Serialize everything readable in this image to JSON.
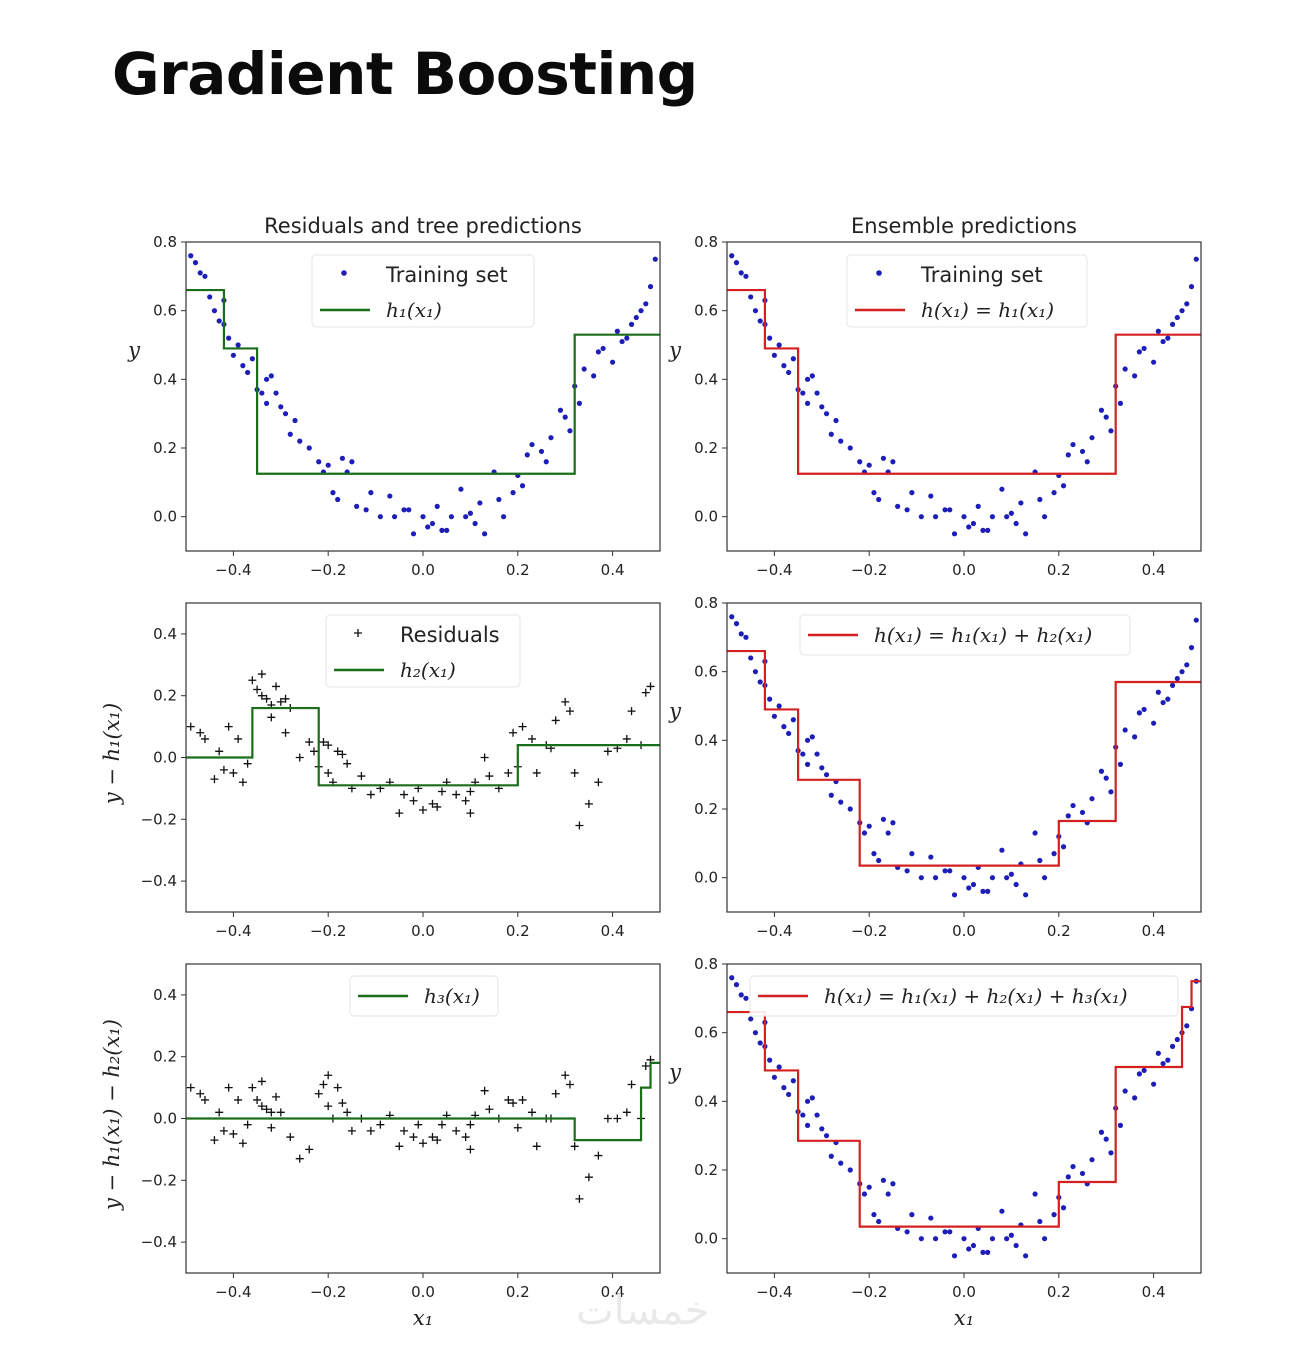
{
  "page": {
    "title": "Gradient Boosting",
    "watermark": "خمسات"
  },
  "colors": {
    "training_points": "#1d1db8",
    "residual_markers": "#111111",
    "tree_line": "#1a6e1a",
    "ensemble_line": "#d42020",
    "axes": "#333333"
  },
  "chart_data": [
    {
      "id": "p1",
      "type": "scatter",
      "title": "Residuals and tree predictions",
      "xlabel": "",
      "ylabel": "y",
      "xlim": [
        -0.5,
        0.5
      ],
      "ylim": [
        -0.1,
        0.8
      ],
      "xticks": [
        -0.4,
        -0.2,
        0.0,
        0.2,
        0.4
      ],
      "xtick_labels": [
        "−0.4",
        "−0.2",
        "0.0",
        "0.2",
        "0.4"
      ],
      "yticks": [
        0.0,
        0.2,
        0.4,
        0.6,
        0.8
      ],
      "ytick_labels": [
        "0.0",
        "0.2",
        "0.4",
        "0.6",
        "0.8"
      ],
      "points": "training",
      "point_style": "dot",
      "legend": [
        {
          "label": "Training set",
          "kind": "dot"
        },
        {
          "label": "h₁(x₁)",
          "kind": "line",
          "color": "green"
        }
      ],
      "legend_position": "upper center",
      "line": {
        "color": "green",
        "breaks": [
          -0.42,
          -0.35,
          0.32
        ],
        "levels": [
          0.66,
          0.49,
          0.125,
          0.53
        ]
      }
    },
    {
      "id": "p2",
      "type": "scatter",
      "title": "Ensemble predictions",
      "xlabel": "",
      "ylabel": "y",
      "xlim": [
        -0.5,
        0.5
      ],
      "ylim": [
        -0.1,
        0.8
      ],
      "xticks": [
        -0.4,
        -0.2,
        0.0,
        0.2,
        0.4
      ],
      "xtick_labels": [
        "−0.4",
        "−0.2",
        "0.0",
        "0.2",
        "0.4"
      ],
      "yticks": [
        0.0,
        0.2,
        0.4,
        0.6,
        0.8
      ],
      "ytick_labels": [
        "0.0",
        "0.2",
        "0.4",
        "0.6",
        "0.8"
      ],
      "points": "training",
      "point_style": "dot",
      "legend": [
        {
          "label": "Training set",
          "kind": "dot"
        },
        {
          "label": "h(x₁) = h₁(x₁)",
          "kind": "line",
          "color": "red"
        }
      ],
      "legend_position": "upper center",
      "line": {
        "color": "red",
        "breaks": [
          -0.42,
          -0.35,
          0.32
        ],
        "levels": [
          0.66,
          0.49,
          0.125,
          0.53
        ]
      }
    },
    {
      "id": "p3",
      "type": "scatter",
      "title": "",
      "xlabel": "",
      "ylabel": "y − h₁(x₁)",
      "xlim": [
        -0.5,
        0.5
      ],
      "ylim": [
        -0.5,
        0.5
      ],
      "xticks": [
        -0.4,
        -0.2,
        0.0,
        0.2,
        0.4
      ],
      "xtick_labels": [
        "−0.4",
        "−0.2",
        "0.0",
        "0.2",
        "0.4"
      ],
      "yticks": [
        -0.4,
        -0.2,
        0.0,
        0.2,
        0.4
      ],
      "ytick_labels": [
        "−0.4",
        "−0.2",
        "0.0",
        "0.2",
        "0.4"
      ],
      "points": "residuals1",
      "point_style": "plus",
      "legend": [
        {
          "label": "Residuals",
          "kind": "plus"
        },
        {
          "label": "h₂(x₁)",
          "kind": "line",
          "color": "green"
        }
      ],
      "legend_position": "upper center",
      "line": {
        "color": "green",
        "breaks": [
          -0.36,
          -0.22,
          0.2
        ],
        "levels": [
          0.0,
          0.16,
          -0.09,
          0.04
        ]
      }
    },
    {
      "id": "p4",
      "type": "scatter",
      "title": "",
      "xlabel": "",
      "ylabel": "y",
      "xlim": [
        -0.5,
        0.5
      ],
      "ylim": [
        -0.1,
        0.8
      ],
      "xticks": [
        -0.4,
        -0.2,
        0.0,
        0.2,
        0.4
      ],
      "xtick_labels": [
        "−0.4",
        "−0.2",
        "0.0",
        "0.2",
        "0.4"
      ],
      "yticks": [
        0.0,
        0.2,
        0.4,
        0.6,
        0.8
      ],
      "ytick_labels": [
        "0.0",
        "0.2",
        "0.4",
        "0.6",
        "0.8"
      ],
      "points": "training",
      "point_style": "dot",
      "legend": [
        {
          "label": "h(x₁) = h₁(x₁) + h₂(x₁)",
          "kind": "line",
          "color": "red"
        }
      ],
      "legend_position": "upper center",
      "line": {
        "color": "red",
        "breaks": [
          -0.42,
          -0.35,
          -0.22,
          0.2,
          0.32
        ],
        "levels": [
          0.66,
          0.49,
          0.285,
          0.035,
          0.165,
          0.57
        ]
      }
    },
    {
      "id": "p5",
      "type": "scatter",
      "title": "",
      "xlabel": "x₁",
      "ylabel": "y − h₁(x₁) − h₂(x₁)",
      "xlim": [
        -0.5,
        0.5
      ],
      "ylim": [
        -0.5,
        0.5
      ],
      "xticks": [
        -0.4,
        -0.2,
        0.0,
        0.2,
        0.4
      ],
      "xtick_labels": [
        "−0.4",
        "−0.2",
        "0.0",
        "0.2",
        "0.4"
      ],
      "yticks": [
        -0.4,
        -0.2,
        0.0,
        0.2,
        0.4
      ],
      "ytick_labels": [
        "−0.4",
        "−0.2",
        "0.0",
        "0.2",
        "0.4"
      ],
      "points": "residuals2",
      "point_style": "plus",
      "legend": [
        {
          "label": "h₃(x₁)",
          "kind": "line",
          "color": "green"
        }
      ],
      "legend_position": "upper center",
      "line": {
        "color": "green",
        "breaks": [
          0.32,
          0.46,
          0.48
        ],
        "levels": [
          0.0,
          -0.07,
          0.1,
          0.18
        ]
      }
    },
    {
      "id": "p6",
      "type": "scatter",
      "title": "",
      "xlabel": "x₁",
      "ylabel": "y",
      "xlim": [
        -0.5,
        0.5
      ],
      "ylim": [
        -0.1,
        0.8
      ],
      "xticks": [
        -0.4,
        -0.2,
        0.0,
        0.2,
        0.4
      ],
      "xtick_labels": [
        "−0.4",
        "−0.2",
        "0.0",
        "0.2",
        "0.4"
      ],
      "yticks": [
        0.0,
        0.2,
        0.4,
        0.6,
        0.8
      ],
      "ytick_labels": [
        "0.0",
        "0.2",
        "0.4",
        "0.6",
        "0.8"
      ],
      "points": "training",
      "point_style": "dot",
      "legend": [
        {
          "label": "h(x₁) = h₁(x₁) + h₂(x₁) + h₃(x₁)",
          "kind": "line",
          "color": "red"
        }
      ],
      "legend_position": "upper center",
      "line": {
        "color": "red",
        "breaks": [
          -0.42,
          -0.35,
          -0.22,
          0.2,
          0.32,
          0.46,
          0.48
        ],
        "levels": [
          0.66,
          0.49,
          0.285,
          0.035,
          0.165,
          0.5,
          0.675,
          0.75
        ]
      }
    }
  ],
  "datasets": {
    "training_x": [
      -0.49,
      -0.48,
      -0.47,
      -0.46,
      -0.45,
      -0.44,
      -0.43,
      -0.42,
      -0.42,
      -0.41,
      -0.4,
      -0.39,
      -0.38,
      -0.37,
      -0.36,
      -0.35,
      -0.34,
      -0.33,
      -0.33,
      -0.32,
      -0.31,
      -0.3,
      -0.29,
      -0.28,
      -0.27,
      -0.26,
      -0.24,
      -0.22,
      -0.21,
      -0.2,
      -0.19,
      -0.18,
      -0.17,
      -0.16,
      -0.15,
      -0.14,
      -0.12,
      -0.11,
      -0.09,
      -0.07,
      -0.06,
      -0.04,
      -0.03,
      -0.02,
      0.0,
      0.01,
      0.02,
      0.03,
      0.04,
      0.05,
      0.06,
      0.08,
      0.09,
      0.1,
      0.11,
      0.12,
      0.13,
      0.15,
      0.16,
      0.17,
      0.19,
      0.2,
      0.21,
      0.22,
      0.23,
      0.25,
      0.26,
      0.27,
      0.29,
      0.3,
      0.31,
      0.32,
      0.33,
      0.34,
      0.36,
      0.37,
      0.38,
      0.4,
      0.41,
      0.42,
      0.43,
      0.44,
      0.45,
      0.46,
      0.47,
      0.48,
      0.49
    ],
    "training_y": [
      0.76,
      0.74,
      0.71,
      0.7,
      0.64,
      0.6,
      0.57,
      0.56,
      0.63,
      0.52,
      0.47,
      0.5,
      0.44,
      0.42,
      0.46,
      0.37,
      0.36,
      0.4,
      0.33,
      0.41,
      0.36,
      0.32,
      0.3,
      0.24,
      0.28,
      0.22,
      0.2,
      0.16,
      0.13,
      0.15,
      0.07,
      0.05,
      0.17,
      0.13,
      0.16,
      0.03,
      0.02,
      0.07,
      0.0,
      0.06,
      0.0,
      0.02,
      0.02,
      -0.05,
      0.0,
      -0.03,
      -0.02,
      0.03,
      -0.04,
      -0.04,
      0.0,
      0.08,
      0.0,
      0.01,
      -0.02,
      0.04,
      -0.05,
      0.13,
      0.05,
      0.0,
      0.07,
      0.12,
      0.09,
      0.18,
      0.21,
      0.19,
      0.16,
      0.23,
      0.31,
      0.29,
      0.25,
      0.38,
      0.33,
      0.43,
      0.41,
      0.48,
      0.49,
      0.45,
      0.54,
      0.51,
      0.52,
      0.56,
      0.58,
      0.6,
      0.62,
      0.67,
      0.75
    ],
    "residuals1_x": [
      -0.49,
      -0.47,
      -0.46,
      -0.44,
      -0.43,
      -0.42,
      -0.41,
      -0.4,
      -0.39,
      -0.38,
      -0.37,
      -0.36,
      -0.35,
      -0.34,
      -0.34,
      -0.33,
      -0.32,
      -0.32,
      -0.31,
      -0.3,
      -0.29,
      -0.29,
      -0.28,
      -0.26,
      -0.24,
      -0.23,
      -0.22,
      -0.21,
      -0.2,
      -0.2,
      -0.19,
      -0.18,
      -0.17,
      -0.16,
      -0.15,
      -0.13,
      -0.11,
      -0.09,
      -0.07,
      -0.05,
      -0.04,
      -0.02,
      -0.01,
      0.0,
      0.02,
      0.03,
      0.04,
      0.05,
      0.07,
      0.09,
      0.1,
      0.1,
      0.11,
      0.13,
      0.14,
      0.16,
      0.18,
      0.19,
      0.2,
      0.21,
      0.23,
      0.24,
      0.26,
      0.27,
      0.28,
      0.3,
      0.31,
      0.32,
      0.33,
      0.35,
      0.37,
      0.39,
      0.41,
      0.43,
      0.44,
      0.46,
      0.47,
      0.48
    ],
    "residuals1_y": [
      0.1,
      0.08,
      0.06,
      -0.07,
      0.02,
      -0.04,
      0.1,
      -0.05,
      0.06,
      -0.08,
      -0.02,
      0.25,
      0.22,
      0.2,
      0.27,
      0.19,
      0.17,
      0.13,
      0.23,
      0.18,
      0.08,
      0.19,
      0.16,
      0.0,
      0.05,
      0.02,
      -0.03,
      0.05,
      0.04,
      -0.05,
      -0.08,
      0.02,
      0.01,
      -0.02,
      -0.1,
      -0.06,
      -0.12,
      -0.1,
      -0.08,
      -0.18,
      -0.12,
      -0.14,
      -0.1,
      -0.17,
      -0.15,
      -0.16,
      -0.11,
      -0.08,
      -0.12,
      -0.14,
      -0.18,
      -0.11,
      -0.08,
      0.0,
      -0.06,
      -0.1,
      -0.05,
      0.08,
      -0.03,
      0.1,
      0.06,
      -0.05,
      0.04,
      0.03,
      0.12,
      0.18,
      0.15,
      -0.05,
      -0.22,
      -0.15,
      -0.08,
      0.02,
      0.03,
      0.06,
      0.15,
      0.04,
      0.21,
      0.23
    ],
    "residuals2_x": [
      -0.49,
      -0.47,
      -0.46,
      -0.44,
      -0.43,
      -0.42,
      -0.41,
      -0.4,
      -0.39,
      -0.38,
      -0.37,
      -0.36,
      -0.35,
      -0.34,
      -0.34,
      -0.33,
      -0.32,
      -0.32,
      -0.31,
      -0.3,
      -0.28,
      -0.26,
      -0.24,
      -0.22,
      -0.21,
      -0.2,
      -0.2,
      -0.19,
      -0.18,
      -0.17,
      -0.16,
      -0.15,
      -0.13,
      -0.11,
      -0.09,
      -0.07,
      -0.05,
      -0.04,
      -0.02,
      -0.01,
      0.0,
      0.02,
      0.03,
      0.04,
      0.05,
      0.07,
      0.09,
      0.1,
      0.1,
      0.11,
      0.13,
      0.14,
      0.16,
      0.18,
      0.19,
      0.2,
      0.21,
      0.23,
      0.24,
      0.26,
      0.27,
      0.28,
      0.3,
      0.31,
      0.32,
      0.33,
      0.35,
      0.37,
      0.39,
      0.41,
      0.43,
      0.44,
      0.46,
      0.47,
      0.48
    ],
    "residuals2_y": [
      0.1,
      0.08,
      0.06,
      -0.07,
      0.02,
      -0.04,
      0.1,
      -0.05,
      0.06,
      -0.08,
      -0.02,
      0.1,
      0.06,
      0.04,
      0.12,
      0.03,
      0.02,
      -0.03,
      0.07,
      0.02,
      -0.06,
      -0.13,
      -0.1,
      0.08,
      0.11,
      0.14,
      0.04,
      0.0,
      0.1,
      0.05,
      0.02,
      -0.04,
      0.0,
      -0.04,
      -0.02,
      0.01,
      -0.09,
      -0.04,
      -0.06,
      -0.02,
      -0.08,
      -0.06,
      -0.07,
      -0.02,
      0.01,
      -0.04,
      -0.06,
      -0.1,
      -0.02,
      0.01,
      0.09,
      0.03,
      0.0,
      0.06,
      0.05,
      -0.03,
      0.06,
      0.02,
      -0.09,
      0.0,
      0.0,
      0.08,
      0.14,
      0.11,
      -0.09,
      -0.26,
      -0.19,
      -0.12,
      0.0,
      0.0,
      0.02,
      0.11,
      0.0,
      0.17,
      0.19
    ]
  }
}
